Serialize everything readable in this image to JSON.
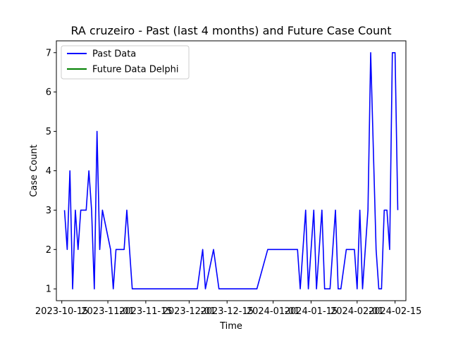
{
  "chart_data": {
    "type": "line",
    "title": "RA cruzeiro - Past (last 4 months) and Future Case Count",
    "xlabel": "Time",
    "ylabel": "Case Count",
    "xlim": [
      "2023-10-13",
      "2024-02-19"
    ],
    "ylim": [
      0.7,
      7.3
    ],
    "x_ticks": [
      "2023-10-15",
      "2023-11-01",
      "2023-11-15",
      "2023-12-01",
      "2023-12-15",
      "2024-01-01",
      "2024-01-15",
      "2024-02-01",
      "2024-02-15"
    ],
    "y_ticks": [
      1,
      2,
      3,
      4,
      5,
      6,
      7
    ],
    "grid": false,
    "legend_position": "upper-left",
    "series": [
      {
        "name": "Past Data",
        "color": "#0000ff",
        "points": [
          [
            "2023-10-16",
            3
          ],
          [
            "2023-10-17",
            2
          ],
          [
            "2023-10-18",
            4
          ],
          [
            "2023-10-19",
            1
          ],
          [
            "2023-10-20",
            3
          ],
          [
            "2023-10-21",
            2
          ],
          [
            "2023-10-22",
            3
          ],
          [
            "2023-10-23",
            3
          ],
          [
            "2023-10-24",
            3
          ],
          [
            "2023-10-25",
            4
          ],
          [
            "2023-10-26",
            3
          ],
          [
            "2023-10-27",
            1
          ],
          [
            "2023-10-28",
            5
          ],
          [
            "2023-10-29",
            2
          ],
          [
            "2023-10-30",
            3
          ],
          [
            "2023-11-02",
            2
          ],
          [
            "2023-11-03",
            1
          ],
          [
            "2023-11-04",
            2
          ],
          [
            "2023-11-05",
            2
          ],
          [
            "2023-11-06",
            2
          ],
          [
            "2023-11-07",
            2
          ],
          [
            "2023-11-08",
            3
          ],
          [
            "2023-11-09",
            2
          ],
          [
            "2023-11-10",
            1
          ],
          [
            "2023-12-04",
            1
          ],
          [
            "2023-12-06",
            2
          ],
          [
            "2023-12-07",
            1
          ],
          [
            "2023-12-10",
            2
          ],
          [
            "2023-12-12",
            1
          ],
          [
            "2023-12-26",
            1
          ],
          [
            "2023-12-30",
            2
          ],
          [
            "2024-01-10",
            2
          ],
          [
            "2024-01-11",
            1
          ],
          [
            "2024-01-13",
            3
          ],
          [
            "2024-01-14",
            1
          ],
          [
            "2024-01-16",
            3
          ],
          [
            "2024-01-17",
            1
          ],
          [
            "2024-01-19",
            3
          ],
          [
            "2024-01-20",
            1
          ],
          [
            "2024-01-22",
            1
          ],
          [
            "2024-01-24",
            3
          ],
          [
            "2024-01-25",
            1
          ],
          [
            "2024-01-26",
            1
          ],
          [
            "2024-01-28",
            2
          ],
          [
            "2024-01-31",
            2
          ],
          [
            "2024-02-01",
            1
          ],
          [
            "2024-02-02",
            3
          ],
          [
            "2024-02-03",
            1
          ],
          [
            "2024-02-05",
            3
          ],
          [
            "2024-02-06",
            7
          ],
          [
            "2024-02-08",
            2
          ],
          [
            "2024-02-09",
            1
          ],
          [
            "2024-02-10",
            1
          ],
          [
            "2024-02-11",
            3
          ],
          [
            "2024-02-12",
            3
          ],
          [
            "2024-02-13",
            2
          ],
          [
            "2024-02-14",
            7
          ],
          [
            "2024-02-15",
            7
          ],
          [
            "2024-02-16",
            3
          ]
        ]
      },
      {
        "name": "Future Data Delphi",
        "color": "#008000",
        "points": []
      }
    ]
  }
}
